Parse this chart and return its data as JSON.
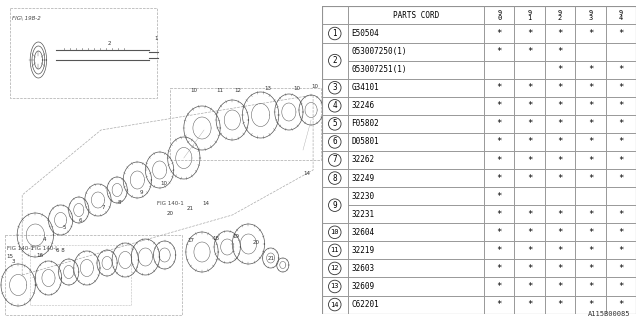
{
  "fig_label": "A115B00085",
  "bg_color": "#ffffff",
  "table_bg": "#ffffff",
  "line_color": "#666666",
  "text_color": "#000000",
  "row_layout": [
    {
      "num": "1",
      "subs": [
        [
          "E50504",
          "*",
          "*",
          "*",
          "*",
          "*"
        ]
      ]
    },
    {
      "num": "2",
      "subs": [
        [
          "053007250(1)",
          "*",
          "*",
          "*",
          "",
          ""
        ],
        [
          "053007251(1)",
          "",
          "",
          "*",
          "*",
          "*"
        ]
      ]
    },
    {
      "num": "3",
      "subs": [
        [
          "G34101",
          "*",
          "*",
          "*",
          "*",
          "*"
        ]
      ]
    },
    {
      "num": "4",
      "subs": [
        [
          "32246",
          "*",
          "*",
          "*",
          "*",
          "*"
        ]
      ]
    },
    {
      "num": "5",
      "subs": [
        [
          "F05802",
          "*",
          "*",
          "*",
          "*",
          "*"
        ]
      ]
    },
    {
      "num": "6",
      "subs": [
        [
          "D05801",
          "*",
          "*",
          "*",
          "*",
          "*"
        ]
      ]
    },
    {
      "num": "7",
      "subs": [
        [
          "32262",
          "*",
          "*",
          "*",
          "*",
          "*"
        ]
      ]
    },
    {
      "num": "8",
      "subs": [
        [
          "32249",
          "*",
          "*",
          "*",
          "*",
          "*"
        ]
      ]
    },
    {
      "num": "9",
      "subs": [
        [
          "32230",
          "*",
          "",
          "",
          "",
          ""
        ],
        [
          "32231",
          "*",
          "*",
          "*",
          "*",
          "*"
        ]
      ]
    },
    {
      "num": "10",
      "subs": [
        [
          "32604",
          "*",
          "*",
          "*",
          "*",
          "*"
        ]
      ]
    },
    {
      "num": "11",
      "subs": [
        [
          "32219",
          "*",
          "*",
          "*",
          "*",
          "*"
        ]
      ]
    },
    {
      "num": "12",
      "subs": [
        [
          "32603",
          "*",
          "*",
          "*",
          "*",
          "*"
        ]
      ]
    },
    {
      "num": "13",
      "subs": [
        [
          "32609",
          "*",
          "*",
          "*",
          "*",
          "*"
        ]
      ]
    },
    {
      "num": "14",
      "subs": [
        [
          "C62201",
          "*",
          "*",
          "*",
          "*",
          "*"
        ]
      ]
    }
  ],
  "year_headers": [
    "9\n0",
    "9\n1",
    "9\n2",
    "9\n3",
    "9\n4"
  ]
}
